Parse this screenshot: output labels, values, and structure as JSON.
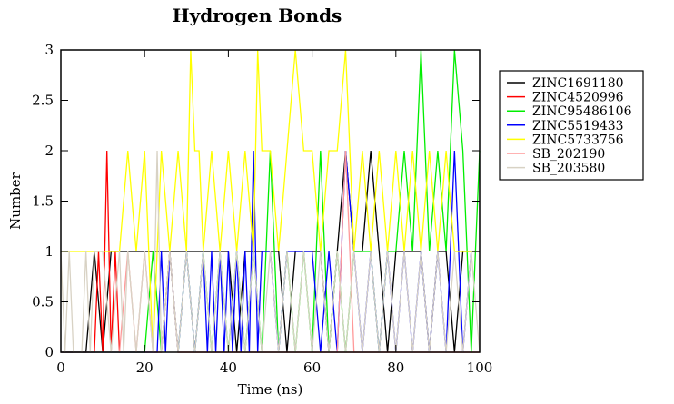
{
  "chart_data": {
    "type": "line",
    "title": "Hydrogen Bonds",
    "xlabel": "Time (ns)",
    "ylabel": "Number",
    "xlim": [
      0,
      100
    ],
    "ylim": [
      0,
      3
    ],
    "x_ticks": [
      0,
      20,
      40,
      60,
      80,
      100
    ],
    "x_tick_labels": [
      "0",
      "20",
      "40",
      "60",
      "80",
      "100"
    ],
    "y_ticks": [
      0,
      0.5,
      1,
      1.5,
      2,
      2.5,
      3
    ],
    "y_tick_labels": [
      "0",
      "0.5",
      "1",
      "1.5",
      "2",
      "2.5",
      "3"
    ],
    "legend_position": "right",
    "grid": false,
    "series": [
      {
        "name": "ZINC1691180",
        "color": "#000000",
        "x": [
          0,
          2,
          4,
          6,
          8,
          10,
          12,
          14,
          16,
          18,
          20,
          22,
          24,
          26,
          28,
          30,
          32,
          34,
          36,
          38,
          40,
          42,
          44,
          46,
          48,
          50,
          52,
          54,
          56,
          58,
          60,
          62,
          64,
          66,
          68,
          70,
          72,
          74,
          76,
          78,
          80,
          82,
          84,
          86,
          88,
          90,
          92,
          94,
          96,
          98,
          100
        ],
        "y": [
          0,
          0,
          0,
          0,
          1,
          0,
          1,
          1,
          1,
          1,
          1,
          1,
          1,
          1,
          1,
          1,
          1,
          1,
          1,
          1,
          1,
          0,
          1,
          1,
          1,
          1,
          1,
          0,
          1,
          1,
          1,
          1,
          0,
          1,
          2,
          1,
          1,
          2,
          1,
          0,
          1,
          1,
          1,
          1,
          0,
          1,
          1,
          0,
          1,
          1,
          1
        ]
      },
      {
        "name": "ZINC4520996",
        "color": "#ff0000",
        "x": [
          0,
          2,
          4,
          6,
          8,
          9,
          10,
          11,
          12,
          13,
          14,
          16,
          18,
          20,
          22,
          24,
          26,
          28,
          30,
          32,
          34,
          36,
          38,
          40,
          42,
          44,
          46,
          48,
          50,
          52,
          54,
          56,
          58,
          60,
          62,
          64,
          66,
          68,
          70,
          72,
          74,
          76,
          78,
          80,
          82,
          84,
          86,
          88,
          90,
          92,
          94,
          96,
          98,
          100
        ],
        "y": [
          0,
          0,
          0,
          0,
          0,
          1,
          0,
          2,
          0,
          1,
          0,
          0,
          0,
          0,
          0,
          0,
          1,
          0,
          0,
          0,
          0,
          0,
          0,
          0,
          0,
          0,
          0,
          0,
          0,
          0,
          0,
          0,
          0,
          0,
          0,
          0,
          0,
          0,
          0,
          0,
          0,
          0,
          0,
          0,
          0,
          0,
          0,
          0,
          0,
          0,
          0,
          0,
          0,
          0
        ]
      },
      {
        "name": "ZINC95486106",
        "color": "#00ee00",
        "x": [
          0,
          5,
          10,
          15,
          20,
          22,
          24,
          26,
          28,
          30,
          32,
          34,
          36,
          38,
          40,
          42,
          44,
          46,
          48,
          50,
          52,
          54,
          56,
          58,
          60,
          62,
          64,
          66,
          68,
          70,
          72,
          74,
          76,
          78,
          80,
          82,
          84,
          86,
          88,
          90,
          92,
          94,
          96,
          98,
          100
        ],
        "y": [
          0,
          0,
          0,
          0,
          0,
          1,
          0,
          1,
          0,
          1,
          0,
          1,
          0,
          1,
          0,
          1,
          0,
          1,
          0,
          2,
          0,
          1,
          0,
          1,
          0,
          2,
          0,
          1,
          0,
          1,
          1,
          1,
          0,
          1,
          1,
          2,
          1,
          3,
          1,
          2,
          1,
          3,
          2,
          0,
          2
        ]
      },
      {
        "name": "ZINC5519433",
        "color": "#0000ff",
        "x": [
          0,
          5,
          10,
          15,
          20,
          23,
          24,
          25,
          26,
          28,
          30,
          32,
          34,
          35,
          36,
          37,
          38,
          39,
          40,
          41,
          42,
          43,
          44,
          45,
          46,
          47,
          48,
          50,
          52,
          54,
          56,
          58,
          60,
          62,
          64,
          66,
          68,
          70,
          72,
          74,
          76,
          78,
          80,
          82,
          84,
          86,
          88,
          90,
          92,
          94,
          96,
          98,
          100
        ],
        "y": [
          0,
          0,
          0,
          0,
          0,
          0,
          1,
          0,
          1,
          0,
          1,
          0,
          1,
          0,
          1,
          0,
          1,
          0,
          1,
          0,
          1,
          0,
          1,
          0,
          2,
          0,
          1,
          1,
          0,
          1,
          1,
          1,
          1,
          0,
          1,
          0,
          2,
          1,
          0,
          1,
          0,
          1,
          0,
          1,
          0,
          1,
          0,
          1,
          0,
          2,
          0,
          1,
          1
        ]
      },
      {
        "name": "ZINC5733756",
        "color": "#ffff00",
        "x": [
          0,
          2,
          4,
          6,
          8,
          10,
          12,
          14,
          16,
          18,
          20,
          22,
          24,
          26,
          28,
          30,
          31,
          32,
          33,
          34,
          36,
          38,
          40,
          42,
          44,
          46,
          47,
          48,
          50,
          52,
          54,
          56,
          58,
          60,
          62,
          64,
          66,
          68,
          70,
          72,
          74,
          76,
          78,
          80,
          82,
          84,
          86,
          88,
          90,
          92,
          94,
          96,
          98,
          100
        ],
        "y": [
          1,
          1,
          1,
          1,
          1,
          1,
          1,
          1,
          2,
          1,
          2,
          0,
          2,
          1,
          2,
          1,
          3,
          2,
          2,
          1,
          2,
          1,
          2,
          1,
          2,
          1,
          3,
          2,
          2,
          1,
          2,
          3,
          2,
          2,
          1,
          2,
          2,
          3,
          1,
          2,
          1,
          2,
          1,
          2,
          1,
          2,
          1,
          2,
          1,
          2,
          1,
          1,
          1,
          1
        ]
      },
      {
        "name": "SB_202190",
        "color": "#ff9999",
        "x": [
          0,
          2,
          4,
          6,
          8,
          10,
          12,
          14,
          16,
          18,
          20,
          22,
          24,
          26,
          28,
          30,
          32,
          34,
          36,
          38,
          40,
          42,
          44,
          46,
          48,
          50,
          52,
          54,
          56,
          58,
          60,
          62,
          64,
          66,
          68,
          70,
          72,
          74,
          76,
          78,
          80,
          82,
          84,
          86,
          88,
          90,
          92,
          94,
          96,
          98,
          100
        ],
        "y": [
          0,
          0,
          0,
          0,
          0,
          0,
          0,
          0,
          1,
          0,
          1,
          0,
          0,
          1,
          0,
          0,
          0,
          0,
          0,
          0,
          0,
          0,
          0,
          0,
          0,
          0,
          0,
          0,
          0,
          0,
          0,
          0,
          0,
          0,
          2,
          0,
          0,
          0,
          0,
          0,
          0,
          0,
          0,
          0,
          0,
          0,
          0,
          0,
          0,
          0,
          0
        ]
      },
      {
        "name": "SB_203580",
        "color": "#d8d2c4",
        "x": [
          0,
          1,
          2,
          3,
          4,
          5,
          6,
          7,
          8,
          10,
          12,
          14,
          15,
          16,
          18,
          20,
          22,
          23,
          24,
          26,
          28,
          30,
          32,
          34,
          36,
          38,
          40,
          42,
          44,
          46,
          48,
          50,
          52,
          54,
          56,
          58,
          60,
          62,
          64,
          66,
          68,
          70,
          72,
          74,
          76,
          78,
          80,
          82,
          84,
          86,
          88,
          90,
          92,
          94,
          96,
          98,
          100
        ],
        "y": [
          1,
          0,
          1,
          0,
          0,
          0,
          1,
          0,
          1,
          1,
          0,
          1,
          0,
          1,
          0,
          1,
          0,
          2,
          0,
          1,
          0,
          1,
          0,
          1,
          0,
          1,
          0,
          1,
          0,
          1,
          0,
          1,
          0,
          1,
          0,
          1,
          0,
          1,
          0,
          1,
          0,
          1,
          0,
          1,
          0,
          1,
          0,
          1,
          0,
          1,
          0,
          1,
          0,
          1,
          0,
          1,
          0
        ]
      }
    ]
  }
}
